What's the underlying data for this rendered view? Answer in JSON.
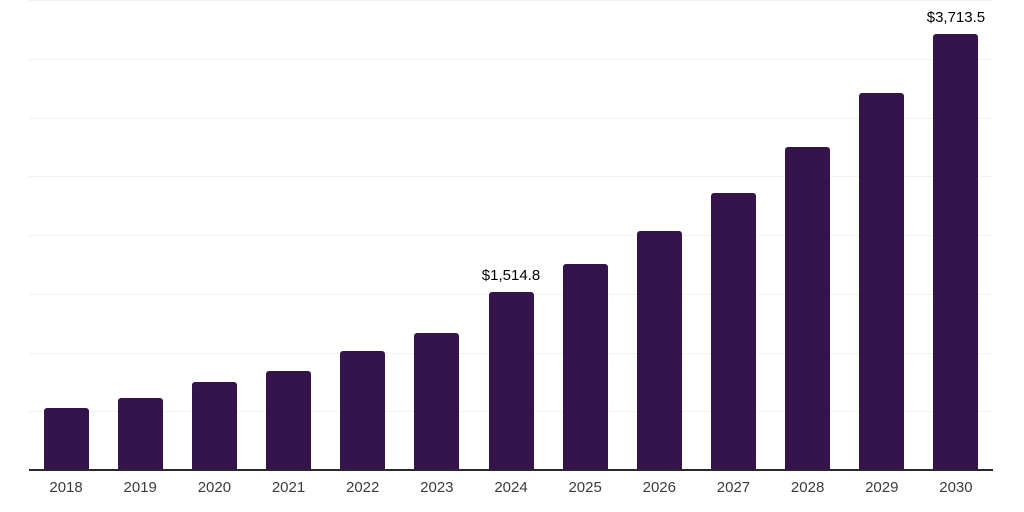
{
  "chart_data": {
    "type": "bar",
    "title": "",
    "xlabel": "",
    "ylabel": "",
    "categories": [
      "2018",
      "2019",
      "2020",
      "2021",
      "2022",
      "2023",
      "2024",
      "2025",
      "2026",
      "2027",
      "2028",
      "2029",
      "2030"
    ],
    "values": [
      530,
      615,
      745,
      840,
      1010,
      1170,
      1514.8,
      1750,
      2030,
      2360,
      2750,
      3205,
      3713.5
    ],
    "ylim": [
      0,
      4000
    ],
    "gridline_step": 500,
    "grid": true,
    "legend": false,
    "y_tick_labels_visible": false,
    "annotations": [
      {
        "category": "2024",
        "label": "$1,514.8"
      },
      {
        "category": "2030",
        "label": "$3,713.5"
      }
    ],
    "colors": {
      "bar": "#35144c",
      "gridline": "#f2f2f3",
      "axis_line": "#28282c",
      "tick_label": "#3c3c3c",
      "value_label": "#000000",
      "background": "#ffffff"
    }
  }
}
